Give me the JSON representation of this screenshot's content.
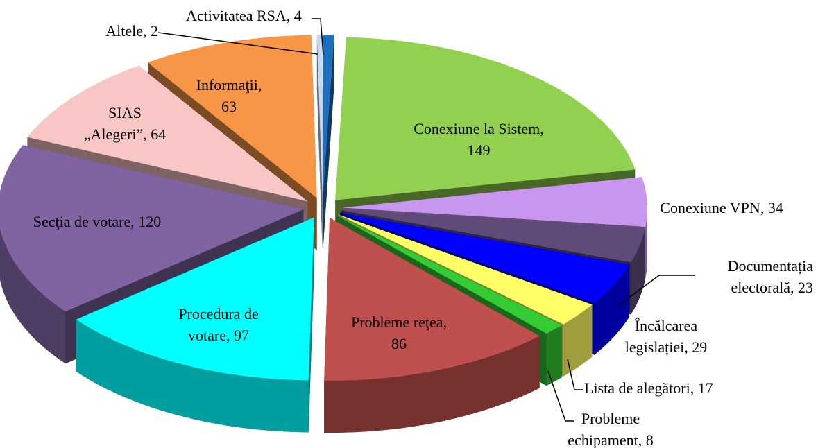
{
  "chart_data": {
    "type": "pie",
    "values": [
      4,
      149,
      34,
      23,
      29,
      17,
      8,
      86,
      97,
      120,
      64,
      63,
      2
    ],
    "value_labels": [
      "Activitatea RSA, 4",
      "Conexiune la Sistem,\n149",
      "Conexiune VPN, 34",
      "Documentația\nelectorală, 23",
      "Încălcarea\nlegislației, 29",
      "Lista de alegători, 17",
      "Probleme\nechipament, 8",
      "Probleme reţea,\n86",
      "Procedura de\nvotare, 97",
      "Secţia de votare, 120",
      "SIAS\n„Alegeri”, 64",
      "Informaţii,\n63",
      "Altele, 2"
    ],
    "colors": [
      "#1f6fbf",
      "#92d050",
      "#c896f0",
      "#5f4b7a",
      "#0000ff",
      "#ffff66",
      "#33cc33",
      "#c0504d",
      "#00ffff",
      "#8064a2",
      "#f9c6c6",
      "#f79646",
      "#c6d9f1"
    ]
  }
}
